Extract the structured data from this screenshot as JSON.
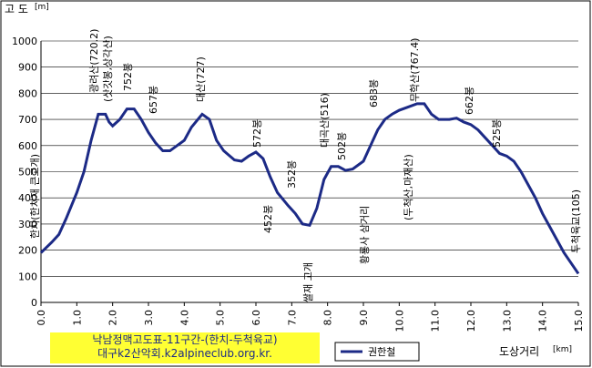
{
  "chart_data": {
    "type": "line",
    "title": [
      "낙남정맥고도표-11구간-(한치-두척육교)",
      "대구k2산악회.k2alpineclub.org.kr."
    ],
    "y_label": "고 도",
    "y_unit": "[m]",
    "x_label": "도상거리",
    "x_unit": "[km]",
    "xlim": [
      0,
      15
    ],
    "ylim": [
      0,
      1000
    ],
    "xticks": [
      {
        "value": 0,
        "label": "0.0"
      },
      {
        "value": 1,
        "label": "1.0"
      },
      {
        "value": 2,
        "label": "2.0"
      },
      {
        "value": 3,
        "label": "3.0"
      },
      {
        "value": 4,
        "label": "4.0"
      },
      {
        "value": 5,
        "label": "5.0"
      },
      {
        "value": 6,
        "label": "6.0"
      },
      {
        "value": 7,
        "label": "7.0"
      },
      {
        "value": 8,
        "label": "8.0"
      },
      {
        "value": 9,
        "label": "9.0"
      },
      {
        "value": 10,
        "label": "10.0"
      },
      {
        "value": 11,
        "label": "11.0"
      },
      {
        "value": 12,
        "label": "12.0"
      },
      {
        "value": 13,
        "label": "13.0"
      },
      {
        "value": 14,
        "label": "14.0"
      },
      {
        "value": 15,
        "label": "15.0"
      }
    ],
    "yticks": [
      0,
      100,
      200,
      300,
      400,
      500,
      600,
      700,
      800,
      900,
      1000
    ],
    "grid": true,
    "x": [
      0,
      0.3,
      0.5,
      0.7,
      1.0,
      1.2,
      1.4,
      1.6,
      1.8,
      1.9,
      2.0,
      2.2,
      2.4,
      2.6,
      2.8,
      3.0,
      3.2,
      3.4,
      3.6,
      3.8,
      4.0,
      4.2,
      4.5,
      4.7,
      4.9,
      5.1,
      5.4,
      5.6,
      5.8,
      6.0,
      6.2,
      6.4,
      6.6,
      6.9,
      7.1,
      7.3,
      7.5,
      7.7,
      7.9,
      8.1,
      8.3,
      8.5,
      8.7,
      9.0,
      9.2,
      9.4,
      9.6,
      9.8,
      10.0,
      10.2,
      10.5,
      10.7,
      10.9,
      11.1,
      11.4,
      11.6,
      11.8,
      12.0,
      12.2,
      12.4,
      12.6,
      12.8,
      13.0,
      13.2,
      13.4,
      13.6,
      13.8,
      14.0,
      14.2,
      14.4,
      14.6,
      14.8,
      15.0
    ],
    "series": [
      {
        "name": "권한철",
        "color": "#1c2a86",
        "values": [
          190,
          230,
          260,
          320,
          420,
          500,
          620,
          720,
          720,
          690,
          675,
          700,
          740,
          740,
          700,
          650,
          610,
          580,
          580,
          600,
          620,
          670,
          720,
          700,
          620,
          580,
          545,
          540,
          560,
          575,
          550,
          480,
          420,
          370,
          340,
          300,
          295,
          360,
          470,
          520,
          520,
          505,
          510,
          540,
          600,
          660,
          700,
          720,
          735,
          745,
          760,
          760,
          720,
          700,
          700,
          705,
          690,
          680,
          660,
          630,
          600,
          570,
          560,
          540,
          500,
          450,
          400,
          340,
          290,
          240,
          190,
          150,
          110
        ]
      }
    ],
    "annotations": [
      "한치(한치재 큰고개)",
      "광려산(720.2)",
      "(삿갓봉,상각산)",
      "752봉",
      "657봉",
      "대산(727)",
      "572봉",
      "452봉",
      "352봉",
      "쌀재 고개",
      "대곡산(516)",
      "502봉",
      "황룡사 삼거리",
      "683봉",
      "무학산(767.4)",
      "(두척산,마재산)",
      "662봉",
      "525봉",
      "두척육교(105)"
    ]
  }
}
